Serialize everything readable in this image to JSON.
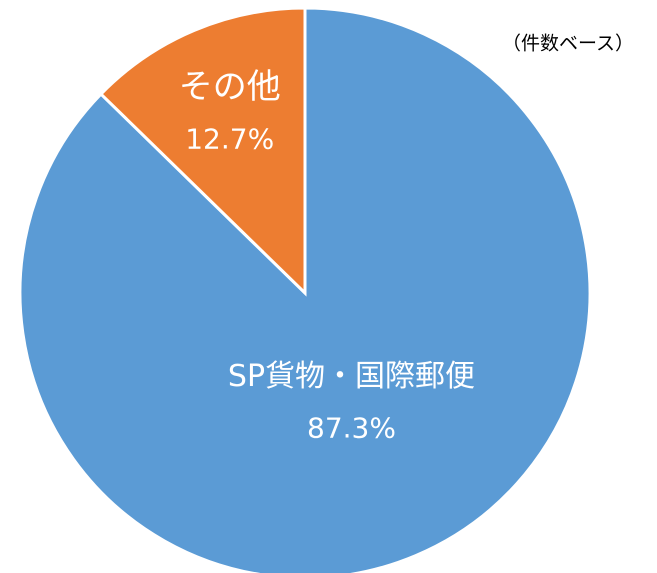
{
  "chart_data": {
    "type": "pie",
    "subtitle": "（件数ベース）",
    "categories": [
      "SP貨物・国際郵便",
      "その他"
    ],
    "values": [
      87.3,
      12.7
    ],
    "value_labels": [
      "87.3%",
      "12.7%"
    ],
    "colors": [
      "#5b9bd5",
      "#ed7d31"
    ]
  }
}
